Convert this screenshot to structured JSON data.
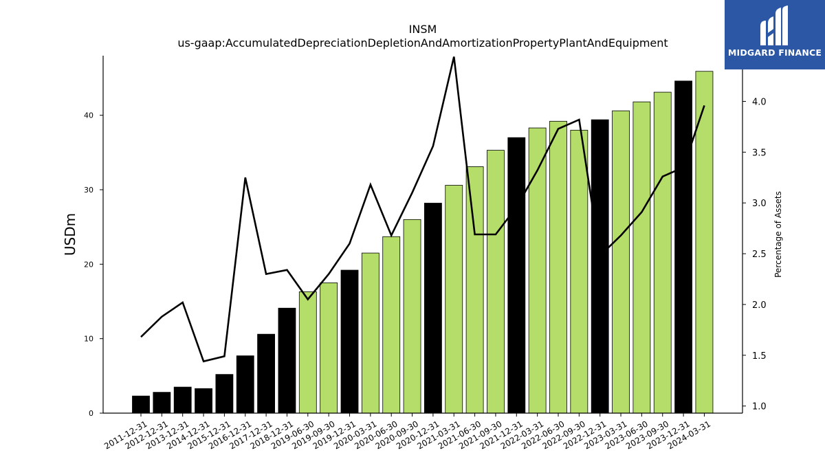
{
  "brand": {
    "name": "MIDGARD FINANCE",
    "logo_icon": "mf-monogram-icon",
    "bg_color": "#2b57a5"
  },
  "chart_data": {
    "type": "bar",
    "title": "INSM",
    "subtitle": "us-gaap:AccumulatedDepreciationDepletionAndAmortizationPropertyPlantAndEquipment",
    "ylabel": "USDm",
    "y2label": "Percentage of Assets",
    "ylim": [
      0,
      48
    ],
    "y2lim": [
      0.93,
      4.45
    ],
    "yticks": [
      0,
      10,
      20,
      30,
      40
    ],
    "y2ticks": [
      1.0,
      1.5,
      2.0,
      2.5,
      3.0,
      3.5,
      4.0
    ],
    "colors": {
      "annual": "#000000",
      "quarterly": "#b5dd6a",
      "line": "#000000"
    },
    "categories": [
      "2011-12-31",
      "2012-12-31",
      "2013-12-31",
      "2014-12-31",
      "2015-12-31",
      "2016-12-31",
      "2017-12-31",
      "2018-12-31",
      "2019-06-30",
      "2019-09-30",
      "2019-12-31",
      "2020-03-31",
      "2020-06-30",
      "2020-09-30",
      "2020-12-31",
      "2021-03-31",
      "2021-06-30",
      "2021-09-30",
      "2021-12-31",
      "2022-03-31",
      "2022-06-30",
      "2022-09-30",
      "2022-12-31",
      "2023-03-31",
      "2023-06-30",
      "2023-09-30",
      "2023-12-31",
      "2024-03-31"
    ],
    "period_type": [
      "annual",
      "annual",
      "annual",
      "annual",
      "annual",
      "annual",
      "annual",
      "annual",
      "quarterly",
      "quarterly",
      "annual",
      "quarterly",
      "quarterly",
      "quarterly",
      "annual",
      "quarterly",
      "quarterly",
      "quarterly",
      "annual",
      "quarterly",
      "quarterly",
      "quarterly",
      "annual",
      "quarterly",
      "quarterly",
      "quarterly",
      "annual",
      "quarterly"
    ],
    "series": [
      {
        "type": "bar",
        "axis": "left",
        "values": [
          2.3,
          2.8,
          3.5,
          3.3,
          5.2,
          7.7,
          10.6,
          14.1,
          16.3,
          17.5,
          19.2,
          21.5,
          23.7,
          26.0,
          28.2,
          30.6,
          33.1,
          35.3,
          37.0,
          38.3,
          39.2,
          38.0,
          39.4,
          40.6,
          41.8,
          43.1,
          44.6,
          45.9
        ]
      },
      {
        "type": "line",
        "axis": "right",
        "values": [
          1.68,
          1.88,
          2.02,
          1.44,
          1.49,
          3.25,
          2.3,
          2.34,
          2.05,
          2.3,
          2.6,
          3.18,
          2.68,
          3.1,
          3.56,
          4.44,
          2.69,
          2.69,
          2.96,
          3.32,
          3.73,
          3.82,
          2.48,
          2.68,
          2.91,
          3.26,
          3.35,
          3.96
        ]
      }
    ]
  }
}
